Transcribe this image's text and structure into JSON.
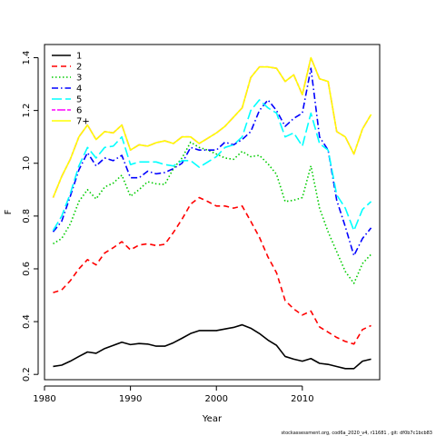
{
  "chart_data": {
    "type": "line",
    "title": "",
    "xlabel": "Year",
    "ylabel": "F",
    "xlim": [
      1980,
      2019
    ],
    "ylim": [
      0.18,
      1.45
    ],
    "x_ticks": [
      1980,
      1990,
      2000,
      2010
    ],
    "y_ticks": [
      0.2,
      0.4,
      0.6,
      0.8,
      1.0,
      1.2,
      1.4
    ],
    "grid": false,
    "legend_position": "top-left",
    "x": [
      1981,
      1982,
      1983,
      1984,
      1985,
      1986,
      1987,
      1988,
      1989,
      1990,
      1991,
      1992,
      1993,
      1994,
      1995,
      1996,
      1997,
      1998,
      1999,
      2000,
      2001,
      2002,
      2003,
      2004,
      2005,
      2006,
      2007,
      2008,
      2009,
      2010,
      2011,
      2012,
      2013,
      2014,
      2015,
      2016,
      2017,
      2018
    ],
    "series": [
      {
        "name": "1",
        "color": "#000000",
        "dash": "solid",
        "values": [
          0.23,
          0.235,
          0.25,
          0.268,
          0.285,
          0.28,
          0.298,
          0.31,
          0.322,
          0.313,
          0.317,
          0.315,
          0.307,
          0.307,
          0.32,
          0.337,
          0.355,
          0.366,
          0.366,
          0.366,
          0.372,
          0.378,
          0.388,
          0.375,
          0.355,
          0.33,
          0.31,
          0.268,
          0.258,
          0.25,
          0.26,
          0.242,
          0.238,
          0.23,
          0.222,
          0.222,
          0.25,
          0.258
        ]
      },
      {
        "name": "2",
        "color": "#ff0000",
        "dash": "dashed",
        "values": [
          0.51,
          0.52,
          0.555,
          0.6,
          0.635,
          0.615,
          0.66,
          0.68,
          0.703,
          0.672,
          0.69,
          0.695,
          0.688,
          0.693,
          0.738,
          0.788,
          0.845,
          0.87,
          0.855,
          0.838,
          0.838,
          0.83,
          0.838,
          0.78,
          0.72,
          0.645,
          0.585,
          0.48,
          0.448,
          0.425,
          0.44,
          0.38,
          0.36,
          0.34,
          0.325,
          0.315,
          0.37,
          0.385
        ]
      },
      {
        "name": "3",
        "color": "#00cc00",
        "dash": "dotted",
        "values": [
          0.695,
          0.715,
          0.77,
          0.855,
          0.9,
          0.865,
          0.91,
          0.925,
          0.955,
          0.875,
          0.9,
          0.93,
          0.922,
          0.92,
          0.98,
          1.02,
          1.08,
          1.06,
          1.05,
          1.035,
          1.02,
          1.015,
          1.045,
          1.025,
          1.03,
          0.998,
          0.958,
          0.855,
          0.86,
          0.87,
          0.99,
          0.83,
          0.74,
          0.665,
          0.59,
          0.545,
          0.62,
          0.655
        ]
      },
      {
        "name": "4",
        "color": "#0000ff",
        "dash": "dashdot",
        "values": [
          0.74,
          0.78,
          0.875,
          0.975,
          1.04,
          0.99,
          1.02,
          1.01,
          1.03,
          0.945,
          0.945,
          0.97,
          0.96,
          0.965,
          0.98,
          1.0,
          1.06,
          1.05,
          1.05,
          1.05,
          1.08,
          1.07,
          1.09,
          1.12,
          1.2,
          1.24,
          1.2,
          1.14,
          1.17,
          1.19,
          1.36,
          1.1,
          1.05,
          0.86,
          0.76,
          0.65,
          0.715,
          0.755
        ]
      },
      {
        "name": "5",
        "color": "#00ffff",
        "dash": "longdash",
        "values": [
          0.745,
          0.8,
          0.885,
          0.99,
          1.06,
          1.02,
          1.06,
          1.065,
          1.1,
          0.995,
          1.005,
          1.005,
          1.005,
          0.995,
          0.99,
          1.01,
          1.01,
          0.985,
          1.005,
          1.025,
          1.06,
          1.07,
          1.1,
          1.2,
          1.24,
          1.21,
          1.19,
          1.1,
          1.115,
          1.065,
          1.19,
          1.075,
          1.05,
          0.88,
          0.83,
          0.745,
          0.825,
          0.855
        ]
      },
      {
        "name": "6",
        "color": "#ff00ff",
        "dash": "twodash",
        "values": [
          0.87,
          0.95,
          1.015,
          1.1,
          1.145,
          1.09,
          1.12,
          1.115,
          1.145,
          1.05,
          1.07,
          1.065,
          1.078,
          1.085,
          1.075,
          1.1,
          1.1,
          1.075,
          1.095,
          1.115,
          1.14,
          1.175,
          1.21,
          1.325,
          1.365,
          1.365,
          1.36,
          1.31,
          1.335,
          1.26,
          1.4,
          1.32,
          1.31,
          1.12,
          1.1,
          1.035,
          1.13,
          1.185
        ]
      },
      {
        "name": "7+",
        "color": "#ffff00",
        "dash": "solid",
        "values": [
          0.87,
          0.95,
          1.015,
          1.1,
          1.145,
          1.09,
          1.12,
          1.115,
          1.145,
          1.05,
          1.07,
          1.065,
          1.078,
          1.085,
          1.075,
          1.1,
          1.1,
          1.075,
          1.095,
          1.115,
          1.14,
          1.175,
          1.21,
          1.325,
          1.365,
          1.365,
          1.36,
          1.31,
          1.335,
          1.26,
          1.4,
          1.32,
          1.31,
          1.12,
          1.1,
          1.035,
          1.13,
          1.185
        ]
      }
    ]
  },
  "footer": "stockassessment.org, cod6a_2020_v4, r11681 , git: df0b7c1bcb83"
}
